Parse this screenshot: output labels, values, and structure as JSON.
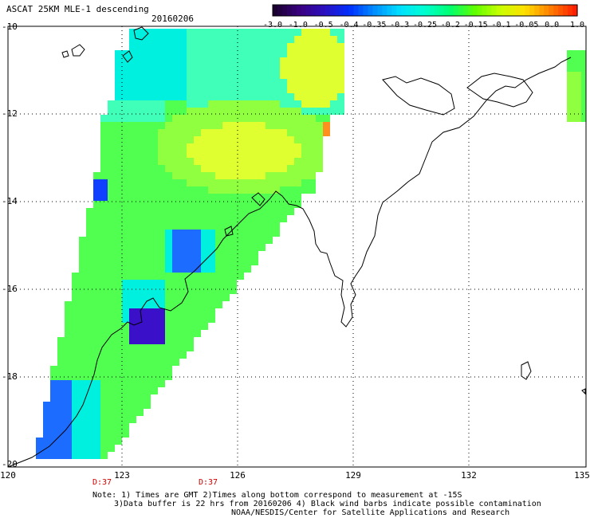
{
  "title": "ASCAT 25KM MLE-1 descending",
  "date": "20160206",
  "colorbar": {
    "labels": [
      "-3.0",
      "-1.0",
      "-0.5",
      "-0.4",
      "-0.35",
      "-0.3",
      "-0.25",
      "-0.2",
      "-0.15",
      "-0.1",
      "-0.05",
      "0.0",
      "1.0"
    ],
    "colors": [
      "#1a0030",
      "#3a0080",
      "#2a10c0",
      "#0030ff",
      "#0090ff",
      "#00e0ff",
      "#00ffd0",
      "#00ff70",
      "#60ff00",
      "#c8ff00",
      "#ffe000",
      "#ff8000",
      "#ff2000"
    ]
  },
  "map": {
    "lat_ticks": [
      "-10",
      "-12",
      "-14",
      "-16",
      "-18",
      "-20"
    ],
    "lon_ticks": [
      "120",
      "123",
      "126",
      "129",
      "132",
      "135"
    ],
    "pass_times": [
      "D:37",
      "D:37"
    ]
  },
  "notes": {
    "line1": "Note: 1) Times are GMT 2)Times along bottom correspond to measurement at -15S",
    "line2": "3)Data buffer is 22 hrs from 20160206 4) Black wind barbs indicate possible contamination",
    "line3": "NOAA/NESDIS/Center for Satellite Applications and Research"
  },
  "swath_colors": {
    "cyan": "#00f0e0",
    "aqua": "#40ffb8",
    "green": "#50ff50",
    "lime": "#90ff40",
    "yellow": "#e0ff30",
    "blue": "#1c6cff",
    "deepblue": "#1040ff",
    "indigo": "#3a10c8",
    "orange": "#ff9020"
  }
}
